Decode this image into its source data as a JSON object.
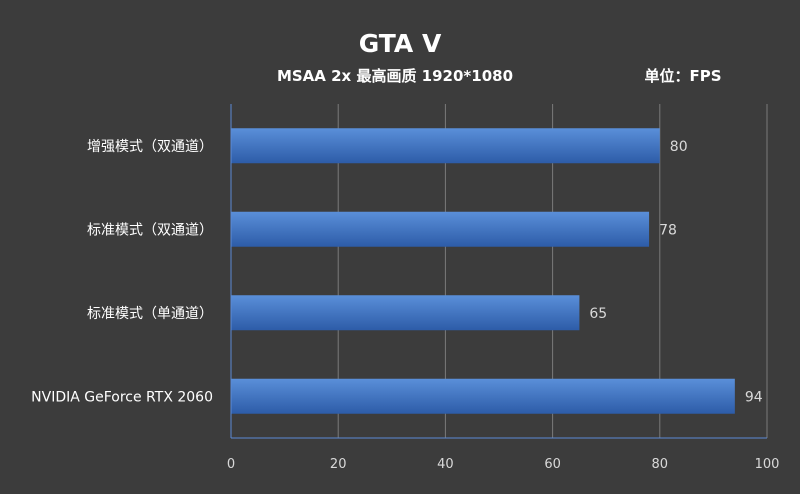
{
  "colors": {
    "background": "#3c3c3c",
    "bar_top": "#5a8fd9",
    "bar_bottom": "#2d5ca8",
    "axis": "#5b8ad6",
    "gridline": "#7a7a7a",
    "text": "#ffffff",
    "value_text": "#d9d9d9"
  },
  "chart_data": {
    "type": "bar",
    "orientation": "horizontal",
    "title": "GTA V",
    "subtitle": "MSAA 2x 最高画质 1920*1080",
    "unit": "单位：FPS",
    "categories": [
      "增强模式（双通道）",
      "标准模式（双通道）",
      "标准模式（单通道）",
      "NVIDIA GeForce RTX 2060"
    ],
    "values": [
      80,
      78,
      65,
      94
    ],
    "xlim": [
      0,
      100
    ],
    "xticks": [
      0,
      20,
      40,
      60,
      80,
      100
    ],
    "grid": true,
    "legend": "none",
    "data_labels": true
  }
}
